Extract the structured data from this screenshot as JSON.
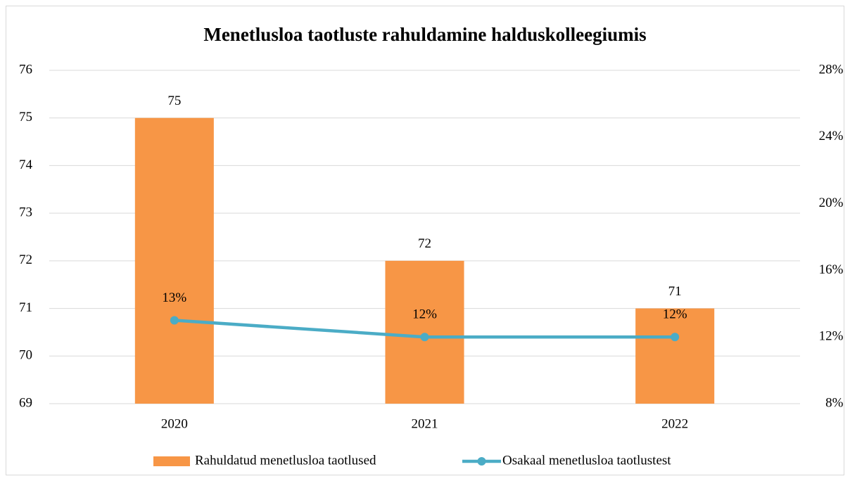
{
  "chart_data": {
    "type": "combo",
    "title": "Menetlusloa taotluste rahuldamine halduskolleegiumis",
    "categories": [
      "2020",
      "2021",
      "2022"
    ],
    "series": [
      {
        "name": "Rahuldatud menetlusloa taotlused",
        "type": "bar",
        "color": "#f79646",
        "values": [
          75,
          72,
          71
        ]
      },
      {
        "name": "Osakaal menetlusloa taotlustest",
        "type": "line",
        "axis": "y2",
        "color": "#4bacc6",
        "values": [
          13,
          12,
          12
        ],
        "value_labels": [
          "13%",
          "12%",
          "12%"
        ]
      }
    ],
    "ylim": [
      69,
      76
    ],
    "yticks": [
      69,
      70,
      71,
      72,
      73,
      74,
      75,
      76
    ],
    "y2lim": [
      8,
      28
    ],
    "y2ticks": [
      {
        "value": 8,
        "label": "8%"
      },
      {
        "value": 12,
        "label": "12%"
      },
      {
        "value": 16,
        "label": "16%"
      },
      {
        "value": 20,
        "label": "20%"
      },
      {
        "value": 24,
        "label": "24%"
      },
      {
        "value": 28,
        "label": "28%"
      }
    ],
    "grid": true,
    "legend": "bottom"
  }
}
